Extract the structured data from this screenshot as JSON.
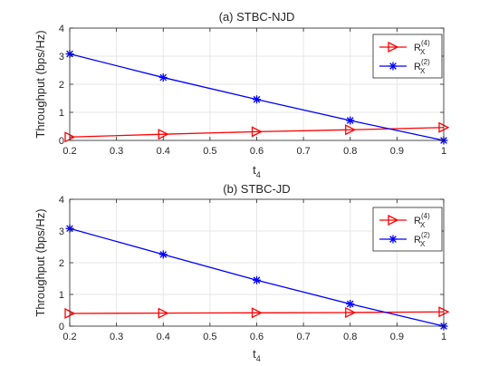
{
  "chart_data": [
    {
      "type": "line",
      "title": "(a) STBC-NJD",
      "xlabel": "t",
      "xlabel_sub": "4",
      "ylabel": "Throughput (bps/Hz)",
      "xlim": [
        0.2,
        1.0
      ],
      "ylim": [
        0,
        4
      ],
      "xticks": [
        "0.2",
        "0.3",
        "0.4",
        "0.5",
        "0.6",
        "0.7",
        "0.8",
        "0.9",
        "1"
      ],
      "yticks": [
        "0",
        "1",
        "2",
        "3",
        "4"
      ],
      "grid": true,
      "legend_position": "top-right",
      "x": [
        0.2,
        0.4,
        0.6,
        0.8,
        1.0
      ],
      "series": [
        {
          "name": "R",
          "sub": "X",
          "sup": "(4)",
          "color": "#ff0000",
          "marker": "triangle-right",
          "values": [
            0.12,
            0.22,
            0.31,
            0.38,
            0.46
          ]
        },
        {
          "name": "R",
          "sub": "X",
          "sup": "(2)",
          "color": "#0000ff",
          "marker": "asterisk",
          "values": [
            3.08,
            2.24,
            1.46,
            0.71,
            0.0
          ]
        }
      ]
    },
    {
      "type": "line",
      "title": "(b) STBC-JD",
      "xlabel": "t",
      "xlabel_sub": "4",
      "ylabel": "Throughput (bps/Hz)",
      "xlim": [
        0.2,
        1.0
      ],
      "ylim": [
        0,
        4
      ],
      "xticks": [
        "0.2",
        "0.3",
        "0.4",
        "0.5",
        "0.6",
        "0.7",
        "0.8",
        "0.9",
        "1"
      ],
      "yticks": [
        "0",
        "1",
        "2",
        "3",
        "4"
      ],
      "grid": true,
      "legend_position": "top-right",
      "x": [
        0.2,
        0.4,
        0.6,
        0.8,
        1.0
      ],
      "series": [
        {
          "name": "R",
          "sub": "X",
          "sup": "(4)",
          "color": "#ff0000",
          "marker": "triangle-right",
          "values": [
            0.4,
            0.41,
            0.42,
            0.43,
            0.45
          ]
        },
        {
          "name": "R",
          "sub": "X",
          "sup": "(2)",
          "color": "#0000ff",
          "marker": "asterisk",
          "values": [
            3.08,
            2.26,
            1.45,
            0.7,
            0.0
          ]
        }
      ]
    }
  ]
}
